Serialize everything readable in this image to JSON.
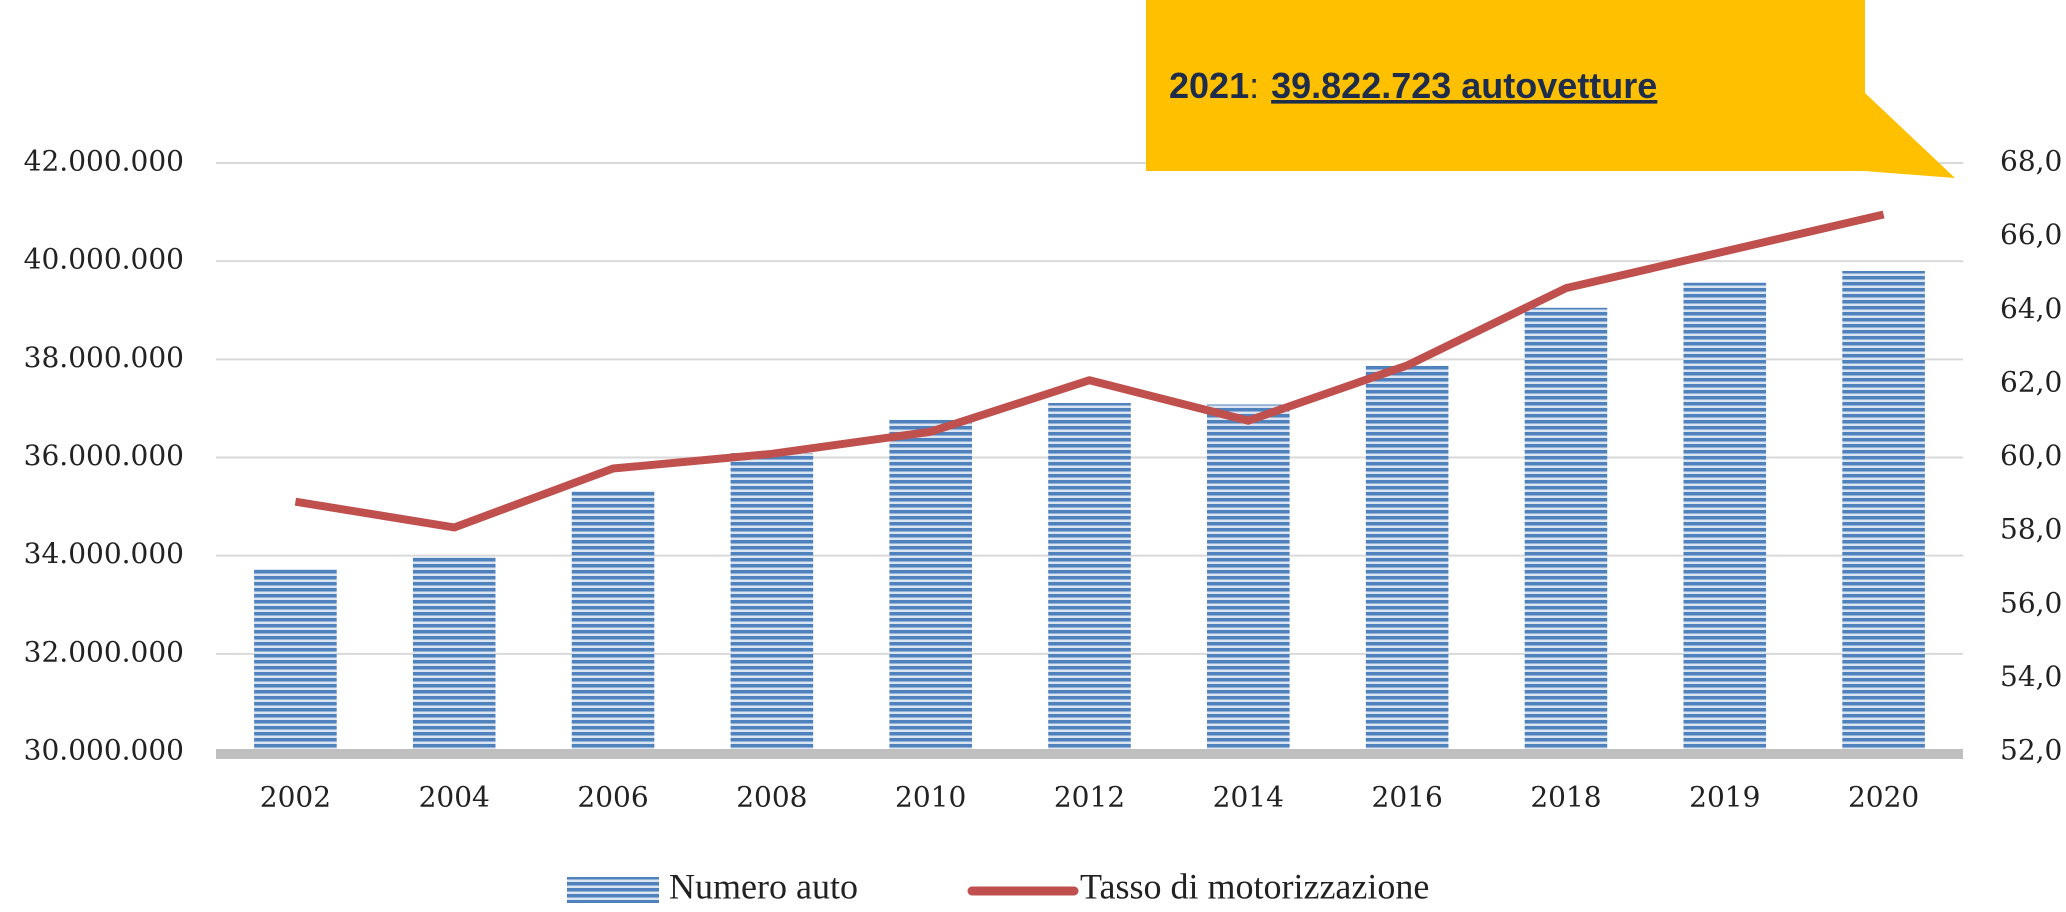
{
  "chart_data": {
    "type": "bar-line",
    "categories": [
      "2002",
      "2004",
      "2006",
      "2008",
      "2010",
      "2012",
      "2014",
      "2016",
      "2018",
      "2019",
      "2020"
    ],
    "series": [
      {
        "name": "Numero auto",
        "color": "#4f81bd",
        "type": "bar",
        "axis": "y",
        "values": [
          33730000,
          33970000,
          35320000,
          36090000,
          36770000,
          37110000,
          37080000,
          37870000,
          39050000,
          39560000,
          39800000
        ]
      },
      {
        "name": "Tasso di motorizzazione",
        "color": "#c0504d",
        "type": "line",
        "axis": "y2",
        "values": [
          58.8,
          58.1,
          59.7,
          60.1,
          60.7,
          62.1,
          61.0,
          62.5,
          64.6,
          65.6,
          66.6
        ]
      }
    ],
    "ylim": [
      30000000,
      42000000
    ],
    "yticks": [
      {
        "value": 30000000,
        "label": "30.000.000"
      },
      {
        "value": 32000000,
        "label": "32.000.000"
      },
      {
        "value": 34000000,
        "label": "34.000.000"
      },
      {
        "value": 36000000,
        "label": "36.000.000"
      },
      {
        "value": 38000000,
        "label": "38.000.000"
      },
      {
        "value": 40000000,
        "label": "40.000.000"
      },
      {
        "value": 42000000,
        "label": "42.000.000"
      }
    ],
    "y2lim": [
      52,
      68
    ],
    "y2ticks": [
      {
        "value": 52,
        "label": "52,0"
      },
      {
        "value": 54,
        "label": "54,0"
      },
      {
        "value": 56,
        "label": "56,0"
      },
      {
        "value": 58,
        "label": "58,0"
      },
      {
        "value": 60,
        "label": "60,0"
      },
      {
        "value": 62,
        "label": "62,0"
      },
      {
        "value": 64,
        "label": "64,0"
      },
      {
        "value": 66,
        "label": "66,0"
      },
      {
        "value": 68,
        "label": "68,0"
      }
    ],
    "grid": true,
    "legend": "bottom",
    "annotation": {
      "label": "2021",
      "separator": ":",
      "text": "39.822.723 autovetture",
      "color": "#ffc000"
    }
  }
}
